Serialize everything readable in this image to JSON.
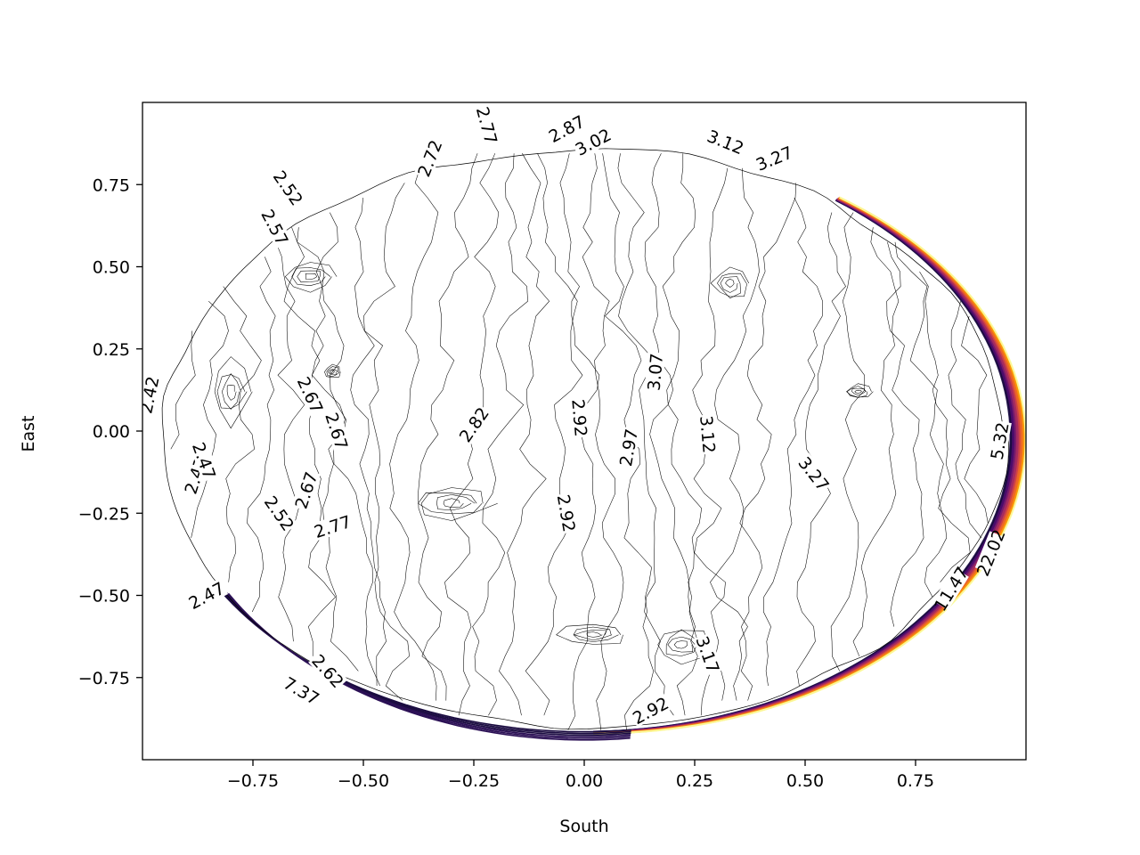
{
  "chart_data": {
    "type": "contour",
    "title": "",
    "xlabel": "South",
    "ylabel": "East",
    "xlim": [
      -1.0,
      1.0
    ],
    "ylim": [
      -1.0,
      1.0
    ],
    "grid": false,
    "legend": "none",
    "colormap": "magma",
    "x_ticks": [
      {
        "value": -0.75,
        "label": "−0.75"
      },
      {
        "value": -0.5,
        "label": "−0.50"
      },
      {
        "value": -0.25,
        "label": "−0.25"
      },
      {
        "value": 0.0,
        "label": "0.00"
      },
      {
        "value": 0.25,
        "label": "0.25"
      },
      {
        "value": 0.5,
        "label": "0.50"
      },
      {
        "value": 0.75,
        "label": "0.75"
      }
    ],
    "y_ticks": [
      {
        "value": 0.75,
        "label": "0.75"
      },
      {
        "value": 0.5,
        "label": "0.50"
      },
      {
        "value": 0.25,
        "label": "0.25"
      },
      {
        "value": 0.0,
        "label": "0.00"
      },
      {
        "value": -0.25,
        "label": "−0.25"
      },
      {
        "value": -0.5,
        "label": "−0.50"
      },
      {
        "value": -0.75,
        "label": "−0.75"
      }
    ],
    "contour_lines": [
      {
        "level": 2.42,
        "x": -0.985,
        "y": 0.11
      },
      {
        "level": 2.47,
        "x": -0.86,
        "y": -0.12
      },
      {
        "level": 2.52,
        "x": -0.67,
        "y": -0.24
      },
      {
        "level": 2.57,
        "x": -0.7,
        "y": 0.62
      },
      {
        "level": 2.62,
        "x": -0.56,
        "y": -0.73
      },
      {
        "level": 2.67,
        "x": -0.62,
        "y": 0.07
      },
      {
        "level": 2.72,
        "x": -0.35,
        "y": 0.85
      },
      {
        "level": 2.77,
        "x": -0.13,
        "y": 0.93
      },
      {
        "level": 2.82,
        "x": -0.25,
        "y": 0.01
      },
      {
        "level": 2.87,
        "x": -0.05,
        "y": 0.93
      },
      {
        "level": 2.92,
        "x": -0.01,
        "y": 0.05
      },
      {
        "level": 2.97,
        "x": 0.1,
        "y": -0.05
      },
      {
        "level": 3.02,
        "x": 0.02,
        "y": 0.88
      },
      {
        "level": 3.07,
        "x": 0.16,
        "y": 0.18
      },
      {
        "level": 3.12,
        "x": 0.28,
        "y": -0.02
      },
      {
        "level": 3.17,
        "x": 0.28,
        "y": -0.68
      },
      {
        "level": 3.27,
        "x": 0.52,
        "y": -0.13
      },
      {
        "level": 5.32,
        "x": 0.94,
        "y": -0.03
      },
      {
        "level": 7.37,
        "x": -0.66,
        "y": -0.78
      },
      {
        "level": 11.47,
        "x": 0.84,
        "y": -0.48
      },
      {
        "level": 22.02,
        "x": 0.92,
        "y": -0.38
      }
    ],
    "contour_labels": [
      {
        "text": "2.42",
        "x": -0.985,
        "y": 0.11,
        "rotation": -78
      },
      {
        "text": "2.47",
        "x": -0.88,
        "y": -0.135,
        "rotation": -72
      },
      {
        "text": "2.47",
        "x": -0.86,
        "y": -0.09,
        "rotation": 70
      },
      {
        "text": "2.47",
        "x": -0.855,
        "y": -0.5,
        "rotation": -28
      },
      {
        "text": "2.52",
        "x": -0.67,
        "y": 0.74,
        "rotation": 55
      },
      {
        "text": "2.52",
        "x": -0.69,
        "y": -0.25,
        "rotation": 55
      },
      {
        "text": "2.57",
        "x": -0.7,
        "y": 0.62,
        "rotation": 62
      },
      {
        "text": "2.62",
        "x": -0.58,
        "y": -0.73,
        "rotation": 48
      },
      {
        "text": "2.67",
        "x": -0.62,
        "y": 0.11,
        "rotation": 65
      },
      {
        "text": "2.67",
        "x": -0.56,
        "y": 0.0,
        "rotation": 72
      },
      {
        "text": "2.67",
        "x": -0.63,
        "y": -0.18,
        "rotation": -72
      },
      {
        "text": "2.72",
        "x": -0.35,
        "y": 0.83,
        "rotation": -68
      },
      {
        "text": "2.77",
        "x": -0.57,
        "y": -0.29,
        "rotation": -18
      },
      {
        "text": "2.77",
        "x": -0.22,
        "y": 0.93,
        "rotation": 75
      },
      {
        "text": "2.82",
        "x": -0.25,
        "y": 0.02,
        "rotation": -55
      },
      {
        "text": "2.87",
        "x": -0.04,
        "y": 0.92,
        "rotation": -28
      },
      {
        "text": "2.92",
        "x": -0.01,
        "y": 0.04,
        "rotation": 85
      },
      {
        "text": "2.92",
        "x": -0.04,
        "y": -0.25,
        "rotation": 80
      },
      {
        "text": "2.92",
        "x": 0.15,
        "y": -0.85,
        "rotation": -28
      },
      {
        "text": "2.97",
        "x": 0.1,
        "y": -0.05,
        "rotation": -80
      },
      {
        "text": "3.02",
        "x": 0.02,
        "y": 0.88,
        "rotation": -28
      },
      {
        "text": "3.07",
        "x": 0.16,
        "y": 0.18,
        "rotation": -85
      },
      {
        "text": "3.12",
        "x": 0.28,
        "y": -0.01,
        "rotation": 85
      },
      {
        "text": "3.12",
        "x": 0.32,
        "y": 0.88,
        "rotation": 22
      },
      {
        "text": "3.17",
        "x": 0.28,
        "y": -0.68,
        "rotation": 70
      },
      {
        "text": "3.27",
        "x": 0.52,
        "y": -0.13,
        "rotation": 52
      },
      {
        "text": "3.27",
        "x": 0.43,
        "y": 0.83,
        "rotation": -22
      },
      {
        "text": "5.32",
        "x": 0.94,
        "y": -0.03,
        "rotation": -80
      },
      {
        "text": "7.37",
        "x": -0.64,
        "y": -0.79,
        "rotation": 30
      },
      {
        "text": "11.47",
        "x": 0.83,
        "y": -0.48,
        "rotation": -58
      },
      {
        "text": "22.02",
        "x": 0.92,
        "y": -0.37,
        "rotation": -68
      }
    ],
    "rim_colors": [
      "#1b0c41",
      "#4a0c6b",
      "#781c6d",
      "#a52c60",
      "#cf4446",
      "#ed6925",
      "#fb9b06",
      "#fcffa4"
    ]
  }
}
